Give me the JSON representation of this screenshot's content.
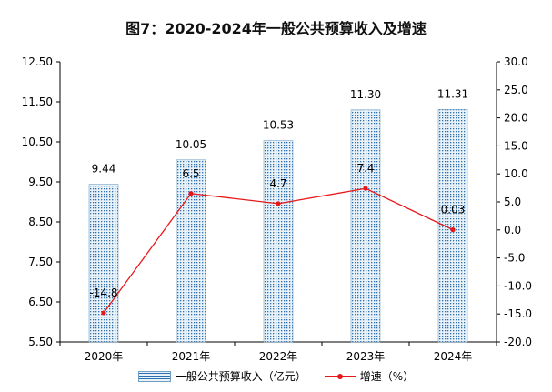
{
  "title": "图7：2020-2024年一般公共预算收入及增速",
  "chart_data": {
    "type": "bar",
    "title": "图7：2020-2024年一般公共预算收入及增速",
    "categories": [
      "2020年",
      "2021年",
      "2022年",
      "2023年",
      "2024年"
    ],
    "series": [
      {
        "name": "一般公共预算收入（亿元）",
        "type": "bar",
        "axis": "left",
        "values": [
          9.44,
          10.05,
          10.53,
          11.3,
          11.31
        ],
        "labels": [
          "9.44",
          "10.05",
          "10.53",
          "11.30",
          "11.31"
        ]
      },
      {
        "name": "增速（%）",
        "type": "line",
        "axis": "right",
        "values": [
          -14.8,
          6.5,
          4.7,
          7.4,
          0.03
        ],
        "labels": [
          "-14.8",
          "6.5",
          "4.7",
          "7.4",
          "0.03"
        ]
      }
    ],
    "y_left": {
      "ylim": [
        5.5,
        12.5
      ],
      "ticks": [
        "12.50",
        "11.50",
        "10.50",
        "9.50",
        "8.50",
        "7.50",
        "6.50",
        "5.50"
      ]
    },
    "y_right": {
      "ylim": [
        -20,
        30
      ],
      "ticks": [
        "30.0",
        "25.0",
        "20.0",
        "15.0",
        "10.0",
        "5.0",
        "0.0",
        "-5.0",
        "-10.0",
        "-15.0",
        "-20.0"
      ]
    },
    "grid": false,
    "legend_position": "bottom"
  },
  "colors": {
    "bar_fill": "#e8f2f8",
    "bar_pattern": "#2e6fb0",
    "line": "#e8181a",
    "axis": "#000000"
  }
}
